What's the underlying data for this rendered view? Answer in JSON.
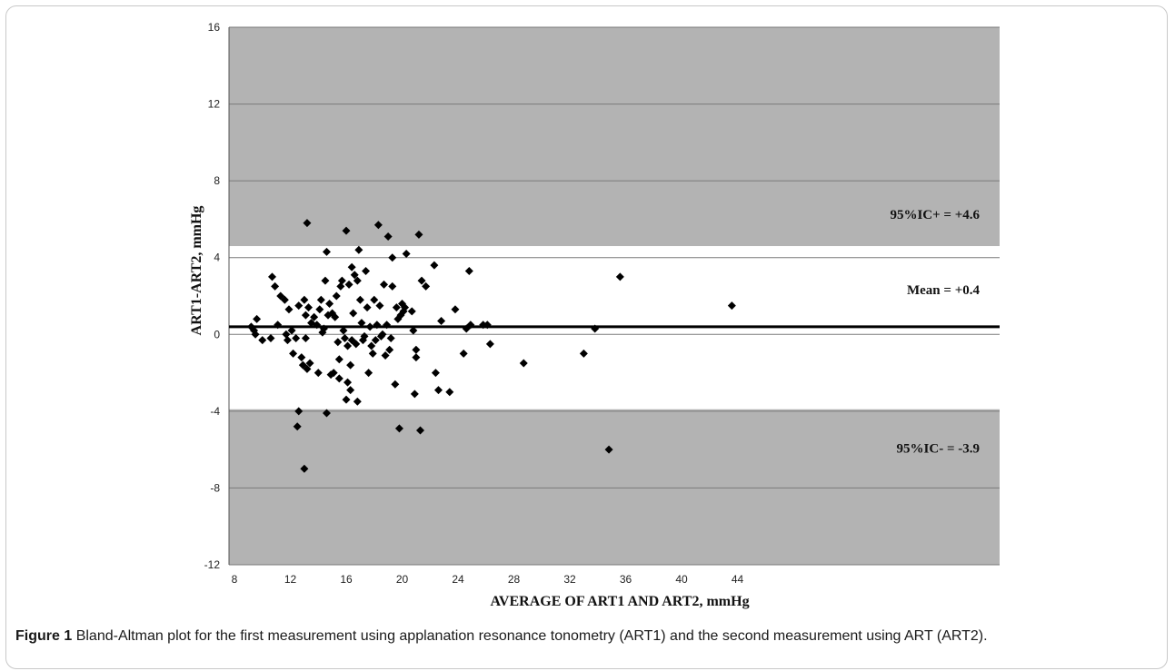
{
  "chart_data": {
    "type": "scatter",
    "xlabel": "AVERAGE OF ART1 AND ART2, mmHg",
    "ylabel": "ART1-ART2, mmHg",
    "xlim": [
      8,
      46
    ],
    "ylim": [
      -12,
      16
    ],
    "x_ticks": [
      8,
      12,
      16,
      20,
      24,
      28,
      32,
      36,
      40,
      44
    ],
    "y_ticks": [
      16,
      12,
      8,
      4,
      0,
      -4,
      -8,
      -12
    ],
    "mean_line": 0.4,
    "upper_limit": 4.6,
    "lower_limit": -3.9,
    "annotations": {
      "upper": "95%IC+ = +4.6",
      "mean": "Mean = +0.4",
      "lower": "95%IC- = -3.9"
    },
    "colors": {
      "band": "#b3b3b3",
      "grid": "#7a7a7a",
      "point": "#000000",
      "mean_line": "#000000"
    },
    "points": [
      [
        9.2,
        0.4
      ],
      [
        9.4,
        0.2
      ],
      [
        9.6,
        0.8
      ],
      [
        9.5,
        0.0
      ],
      [
        10.0,
        -0.3
      ],
      [
        10.6,
        -0.2
      ],
      [
        10.7,
        3.0
      ],
      [
        10.9,
        2.5
      ],
      [
        11.1,
        0.5
      ],
      [
        11.3,
        2.0
      ],
      [
        11.6,
        1.8
      ],
      [
        11.7,
        0.0
      ],
      [
        11.8,
        -0.3
      ],
      [
        11.9,
        1.3
      ],
      [
        12.1,
        0.2
      ],
      [
        12.2,
        -1.0
      ],
      [
        12.4,
        -0.2
      ],
      [
        12.5,
        -4.8
      ],
      [
        12.6,
        -4.0
      ],
      [
        12.6,
        1.5
      ],
      [
        12.8,
        -1.2
      ],
      [
        12.9,
        -1.6
      ],
      [
        13.0,
        1.8
      ],
      [
        13.0,
        -7.0
      ],
      [
        13.1,
        1.0
      ],
      [
        13.1,
        -0.2
      ],
      [
        13.2,
        5.8
      ],
      [
        13.2,
        -1.8
      ],
      [
        13.3,
        1.4
      ],
      [
        13.4,
        -1.5
      ],
      [
        13.5,
        0.6
      ],
      [
        13.7,
        0.9
      ],
      [
        13.9,
        0.5
      ],
      [
        14.0,
        -2.0
      ],
      [
        14.1,
        1.3
      ],
      [
        14.2,
        1.8
      ],
      [
        14.3,
        0.1
      ],
      [
        14.4,
        0.3
      ],
      [
        14.5,
        2.8
      ],
      [
        14.6,
        4.3
      ],
      [
        14.6,
        -4.1
      ],
      [
        14.7,
        1.0
      ],
      [
        14.8,
        1.6
      ],
      [
        14.9,
        -2.1
      ],
      [
        15.0,
        1.1
      ],
      [
        15.1,
        -2.0
      ],
      [
        15.2,
        0.9
      ],
      [
        15.3,
        2.0
      ],
      [
        15.4,
        -0.4
      ],
      [
        15.5,
        -1.3
      ],
      [
        15.5,
        -2.3
      ],
      [
        15.6,
        2.5
      ],
      [
        15.7,
        2.8
      ],
      [
        15.8,
        0.2
      ],
      [
        15.9,
        -0.2
      ],
      [
        16.0,
        5.4
      ],
      [
        16.0,
        -3.4
      ],
      [
        16.1,
        -2.5
      ],
      [
        16.1,
        -0.6
      ],
      [
        16.2,
        2.6
      ],
      [
        16.3,
        -1.6
      ],
      [
        16.3,
        -2.9
      ],
      [
        16.4,
        3.5
      ],
      [
        16.4,
        -0.3
      ],
      [
        16.5,
        1.1
      ],
      [
        16.6,
        3.1
      ],
      [
        16.7,
        -0.5
      ],
      [
        16.8,
        2.8
      ],
      [
        16.8,
        -3.5
      ],
      [
        16.9,
        4.4
      ],
      [
        17.0,
        1.8
      ],
      [
        17.1,
        0.6
      ],
      [
        17.2,
        -0.3
      ],
      [
        17.3,
        -0.1
      ],
      [
        17.4,
        3.3
      ],
      [
        17.5,
        1.4
      ],
      [
        17.6,
        -2.0
      ],
      [
        17.7,
        0.4
      ],
      [
        17.8,
        -0.6
      ],
      [
        17.9,
        -1.0
      ],
      [
        18.0,
        1.8
      ],
      [
        18.1,
        -0.3
      ],
      [
        18.2,
        0.5
      ],
      [
        18.3,
        5.7
      ],
      [
        18.4,
        1.5
      ],
      [
        18.5,
        -0.1
      ],
      [
        18.6,
        0.0
      ],
      [
        18.7,
        2.6
      ],
      [
        18.8,
        -1.1
      ],
      [
        18.9,
        0.5
      ],
      [
        19.0,
        5.1
      ],
      [
        19.1,
        -0.8
      ],
      [
        19.2,
        -0.2
      ],
      [
        19.3,
        4.0
      ],
      [
        19.3,
        2.5
      ],
      [
        19.5,
        -2.6
      ],
      [
        19.6,
        1.4
      ],
      [
        19.7,
        0.8
      ],
      [
        19.8,
        -4.9
      ],
      [
        19.9,
        1.0
      ],
      [
        20.0,
        1.6
      ],
      [
        20.1,
        1.2
      ],
      [
        20.2,
        1.4
      ],
      [
        20.3,
        4.2
      ],
      [
        20.7,
        1.2
      ],
      [
        20.8,
        0.2
      ],
      [
        20.9,
        -3.1
      ],
      [
        21.0,
        -0.8
      ],
      [
        21.0,
        -1.2
      ],
      [
        21.2,
        5.2
      ],
      [
        21.3,
        -5.0
      ],
      [
        21.4,
        2.8
      ],
      [
        21.7,
        2.5
      ],
      [
        22.3,
        3.6
      ],
      [
        22.4,
        -2.0
      ],
      [
        22.6,
        -2.9
      ],
      [
        22.8,
        0.7
      ],
      [
        23.4,
        -3.0
      ],
      [
        23.8,
        1.3
      ],
      [
        24.4,
        -1.0
      ],
      [
        24.6,
        0.3
      ],
      [
        24.8,
        3.3
      ],
      [
        24.9,
        0.5
      ],
      [
        25.8,
        0.5
      ],
      [
        26.1,
        0.5
      ],
      [
        26.3,
        -0.5
      ],
      [
        28.7,
        -1.5
      ],
      [
        33.0,
        -1.0
      ],
      [
        33.8,
        0.3
      ],
      [
        34.8,
        -6.0
      ],
      [
        35.6,
        3.0
      ],
      [
        43.6,
        1.5
      ]
    ]
  },
  "caption": {
    "label": "Figure 1",
    "text": "Bland-Altman plot for the first measurement using applanation resonance tonometry (ART1) and the second measurement using ART (ART2)."
  }
}
